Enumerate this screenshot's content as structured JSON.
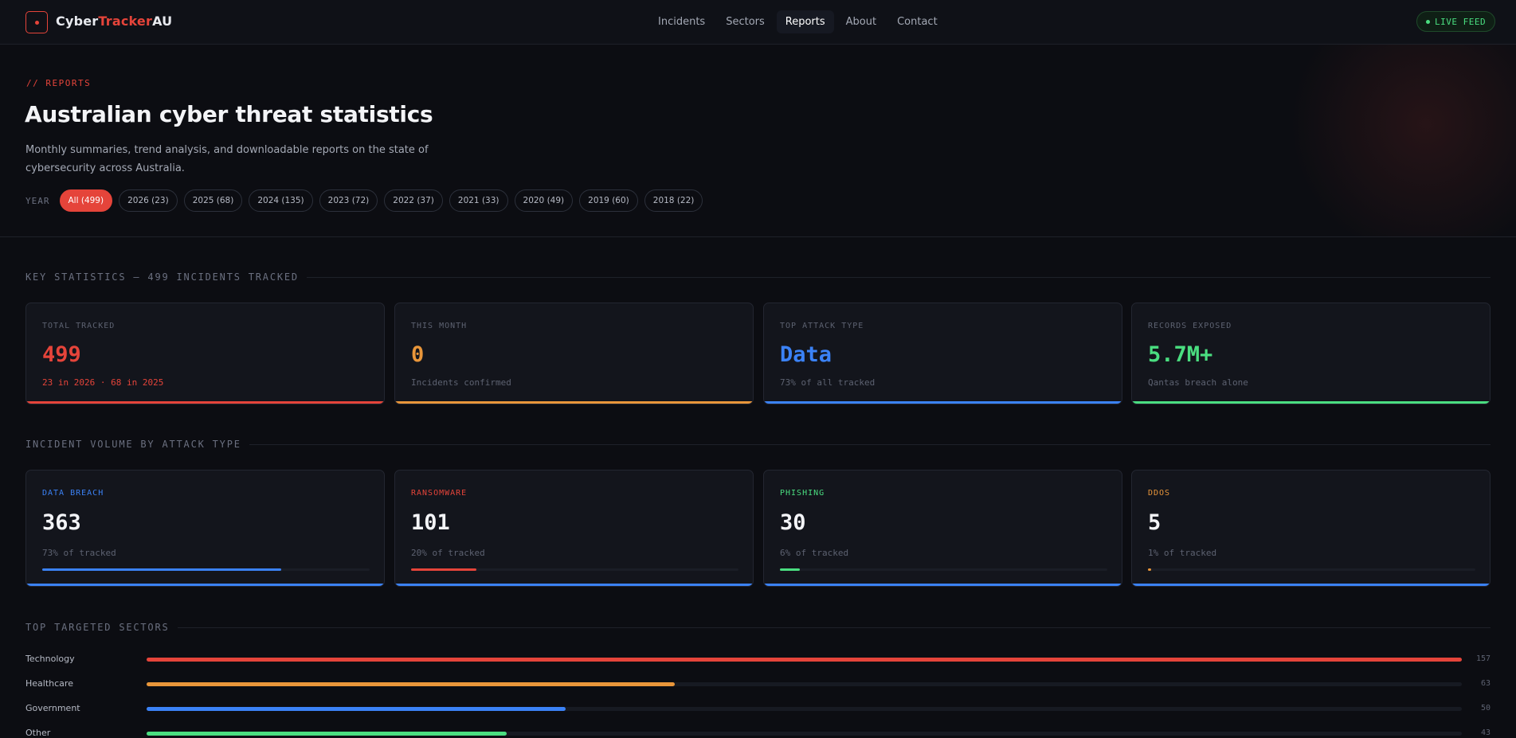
{
  "nav": {
    "brand_a": "Cyber",
    "brand_b": "Tracker",
    "brand_c": "AU",
    "links": [
      "Incidents",
      "Sectors",
      "Reports",
      "About",
      "Contact"
    ],
    "active_link": "Reports",
    "live_label": "LIVE FEED"
  },
  "hero": {
    "eyebrow": "// REPORTS",
    "title": "Australian cyber threat statistics",
    "subtitle": "Monthly summaries, trend analysis, and downloadable reports on the state of cybersecurity across Australia.",
    "year_label": "YEAR",
    "years": [
      "All (499)",
      "2026 (23)",
      "2025 (68)",
      "2024 (135)",
      "2023 (72)",
      "2022 (37)",
      "2021 (33)",
      "2020 (49)",
      "2019 (60)",
      "2018 (22)"
    ],
    "active_year": "All (499)"
  },
  "key_stats": {
    "heading": "KEY STATISTICS — 499 INCIDENTS TRACKED",
    "cards": [
      {
        "label": "TOTAL TRACKED",
        "value": "499",
        "note": "23 in 2026 · 68 in 2025",
        "color": "#e5443a"
      },
      {
        "label": "THIS MONTH",
        "value": "0",
        "note": "Incidents confirmed",
        "color": "#e9963a"
      },
      {
        "label": "TOP ATTACK TYPE",
        "value": "Data",
        "note": "73% of all tracked",
        "color": "#3b82f6"
      },
      {
        "label": "RECORDS EXPOSED",
        "value": "5.7M+",
        "note": "Qantas breach alone",
        "color": "#4ade80"
      }
    ]
  },
  "volume": {
    "heading": "INCIDENT VOLUME BY ATTACK TYPE",
    "cards": [
      {
        "label": "DATA BREACH",
        "value": "363",
        "note": "73% of tracked",
        "pct": 73,
        "color": "#3b82f6"
      },
      {
        "label": "RANSOMWARE",
        "value": "101",
        "note": "20% of tracked",
        "pct": 20,
        "color": "#e5443a"
      },
      {
        "label": "PHISHING",
        "value": "30",
        "note": "6% of tracked",
        "pct": 6,
        "color": "#4ade80"
      },
      {
        "label": "DDOS",
        "value": "5",
        "note": "1% of tracked",
        "pct": 1,
        "color": "#e9963a"
      }
    ]
  },
  "sectors": {
    "heading": "TOP TARGETED SECTORS",
    "max": 157,
    "items": [
      {
        "name": "Technology",
        "count": 157,
        "color": "#e5443a"
      },
      {
        "name": "Healthcare",
        "count": 63,
        "color": "#e9963a"
      },
      {
        "name": "Government",
        "count": 50,
        "color": "#3b82f6"
      },
      {
        "name": "Other",
        "count": 43,
        "color": "#4ade80"
      }
    ]
  }
}
